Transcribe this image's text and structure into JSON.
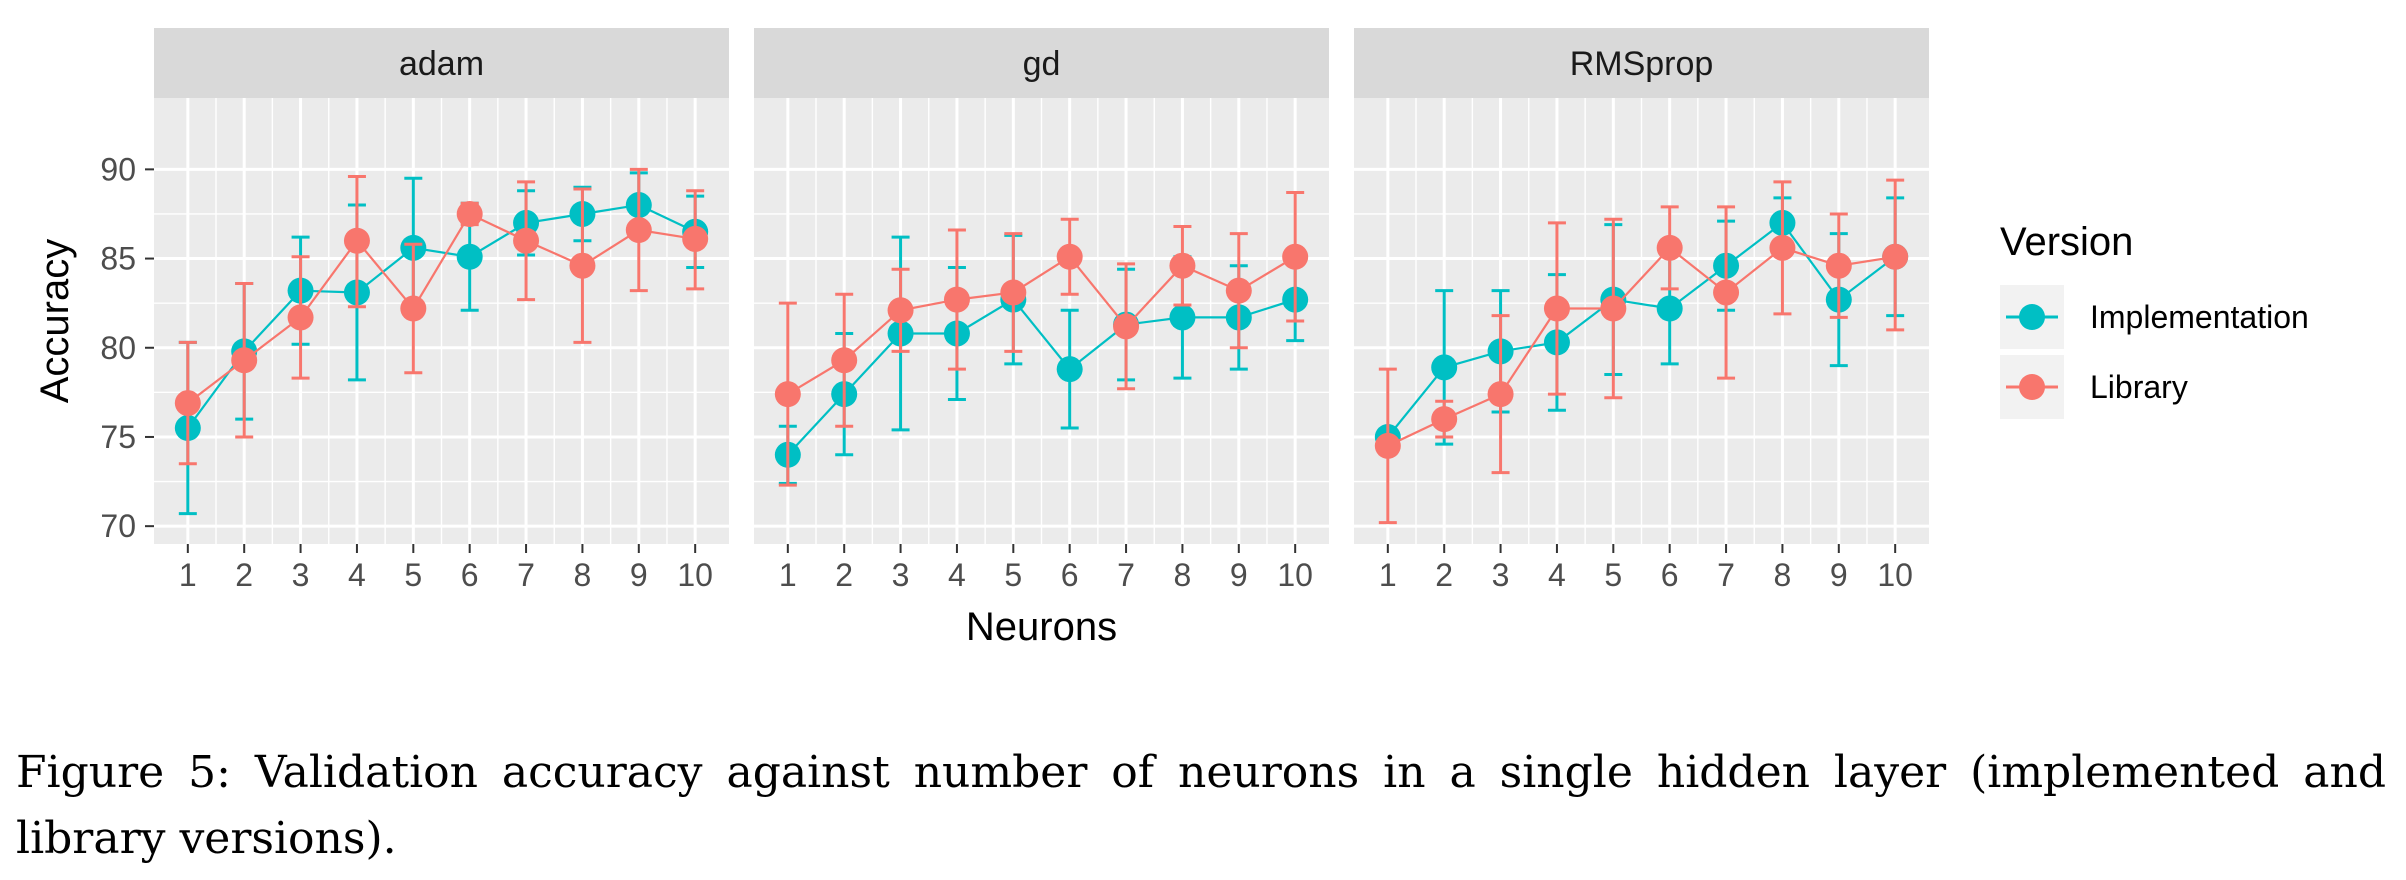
{
  "chart_data": {
    "type": "line",
    "facets": [
      "adam",
      "gd",
      "RMSprop"
    ],
    "x": [
      1,
      2,
      3,
      4,
      5,
      6,
      7,
      8,
      9,
      10
    ],
    "xlabel": "Neurons",
    "ylabel": "Accuracy",
    "yticks": [
      70,
      75,
      80,
      85,
      90
    ],
    "ylim": [
      69,
      94
    ],
    "xlim": [
      0.4,
      10.6
    ],
    "grid": true,
    "legend": {
      "title": "Version",
      "placement": "right"
    },
    "series": [
      {
        "name": "Implementation",
        "color": "#00BFC4",
        "panels": {
          "adam": {
            "mean": [
              75.5,
              79.8,
              83.2,
              83.1,
              85.6,
              85.1,
              87.0,
              87.5,
              88.0,
              86.5
            ],
            "low": [
              70.7,
              76.0,
              80.2,
              78.2,
              82.2,
              82.1,
              85.2,
              86.0,
              86.2,
              84.5
            ],
            "high": [
              80.3,
              83.6,
              86.2,
              88.0,
              89.5,
              88.1,
              88.8,
              89.0,
              89.8,
              88.5
            ]
          },
          "gd": {
            "mean": [
              74.0,
              77.4,
              80.8,
              80.8,
              82.7,
              78.8,
              81.3,
              81.7,
              81.7,
              82.7
            ],
            "low": [
              72.4,
              74.0,
              75.4,
              77.1,
              79.1,
              75.5,
              78.2,
              78.3,
              78.8,
              80.4
            ],
            "high": [
              75.6,
              80.8,
              86.2,
              84.5,
              86.3,
              82.1,
              84.4,
              85.1,
              84.6,
              85.0
            ]
          },
          "RMSprop": {
            "mean": [
              75.0,
              78.9,
              79.8,
              80.3,
              82.7,
              82.2,
              84.6,
              87.0,
              82.7,
              85.1
            ],
            "low": [
              74.8,
              74.6,
              76.4,
              76.5,
              78.5,
              79.1,
              82.1,
              85.6,
              79.0,
              81.8
            ],
            "high": [
              75.2,
              83.2,
              83.2,
              84.1,
              86.9,
              85.3,
              87.1,
              88.4,
              86.4,
              88.4
            ]
          }
        }
      },
      {
        "name": "Library",
        "color": "#F8766D",
        "panels": {
          "adam": {
            "mean": [
              76.9,
              79.3,
              81.7,
              86.0,
              82.2,
              87.5,
              86.0,
              84.6,
              86.6,
              86.1
            ],
            "low": [
              73.5,
              75.0,
              78.3,
              82.3,
              78.6,
              86.9,
              82.7,
              80.3,
              83.2,
              83.3
            ],
            "high": [
              80.3,
              83.6,
              85.1,
              89.6,
              85.8,
              88.1,
              89.3,
              88.9,
              90.0,
              88.8
            ]
          },
          "gd": {
            "mean": [
              77.4,
              79.3,
              82.1,
              82.7,
              83.1,
              85.1,
              81.2,
              84.6,
              83.2,
              85.1
            ],
            "low": [
              72.3,
              75.6,
              79.8,
              78.8,
              79.8,
              83.0,
              77.7,
              82.4,
              80.0,
              81.5
            ],
            "high": [
              82.5,
              83.0,
              84.4,
              86.6,
              86.4,
              87.2,
              84.7,
              86.8,
              86.4,
              88.7
            ]
          },
          "RMSprop": {
            "mean": [
              74.5,
              76.0,
              77.4,
              82.2,
              82.2,
              85.6,
              83.1,
              85.6,
              84.6,
              85.1
            ],
            "low": [
              70.2,
              75.0,
              73.0,
              77.4,
              77.2,
              83.3,
              78.3,
              81.9,
              81.7,
              81.0
            ],
            "high": [
              78.8,
              77.0,
              81.8,
              87.0,
              87.2,
              87.9,
              87.9,
              89.3,
              87.5,
              89.4
            ]
          }
        }
      }
    ]
  },
  "caption": "Figure 5:  Validation accuracy against number of neurons in a single hidden layer (implemented and library versions)."
}
